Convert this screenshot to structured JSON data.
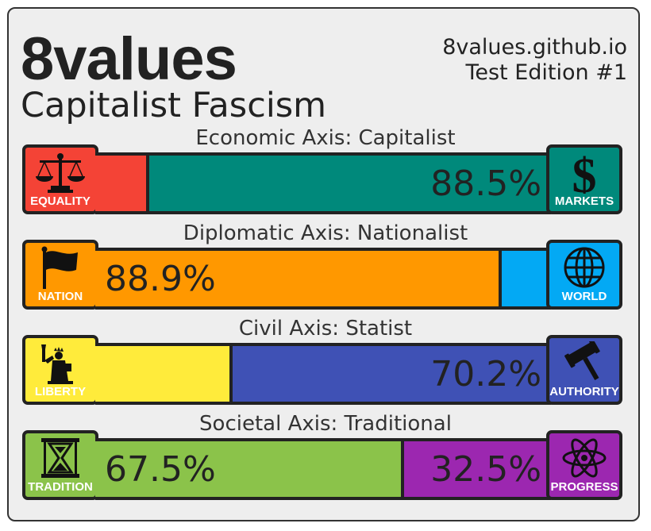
{
  "header": {
    "brand": "8values",
    "result": "Capitalist Fascism",
    "site": "8values.github.io",
    "edition": "Test Edition #1"
  },
  "axes": [
    {
      "label": "Economic Axis: Capitalist",
      "left": {
        "name": "EQUALITY",
        "icon": "scales-icon",
        "color": "#f44336",
        "value": 11.5,
        "text": ""
      },
      "right": {
        "name": "MARKETS",
        "icon": "dollar-icon",
        "color": "#00897b",
        "value": 88.5,
        "text": "88.5%"
      }
    },
    {
      "label": "Diplomatic Axis: Nationalist",
      "left": {
        "name": "NATION",
        "icon": "flag-icon",
        "color": "#ff9800",
        "value": 88.9,
        "text": "88.9%"
      },
      "right": {
        "name": "WORLD",
        "icon": "globe-icon",
        "color": "#03a9f4",
        "value": 11.1,
        "text": ""
      }
    },
    {
      "label": "Civil Axis: Statist",
      "left": {
        "name": "LIBERTY",
        "icon": "statue-of-liberty-icon",
        "color": "#ffeb3b",
        "value": 29.8,
        "text": ""
      },
      "right": {
        "name": "AUTHORITY",
        "icon": "gavel-icon",
        "color": "#3f51b5",
        "value": 70.2,
        "text": "70.2%"
      }
    },
    {
      "label": "Societal Axis: Traditional",
      "left": {
        "name": "TRADITION",
        "icon": "hourglass-icon",
        "color": "#8bc34a",
        "value": 67.5,
        "text": "67.5%"
      },
      "right": {
        "name": "PROGRESS",
        "icon": "atom-icon",
        "color": "#9c27b0",
        "value": 32.5,
        "text": "32.5%"
      }
    }
  ]
}
